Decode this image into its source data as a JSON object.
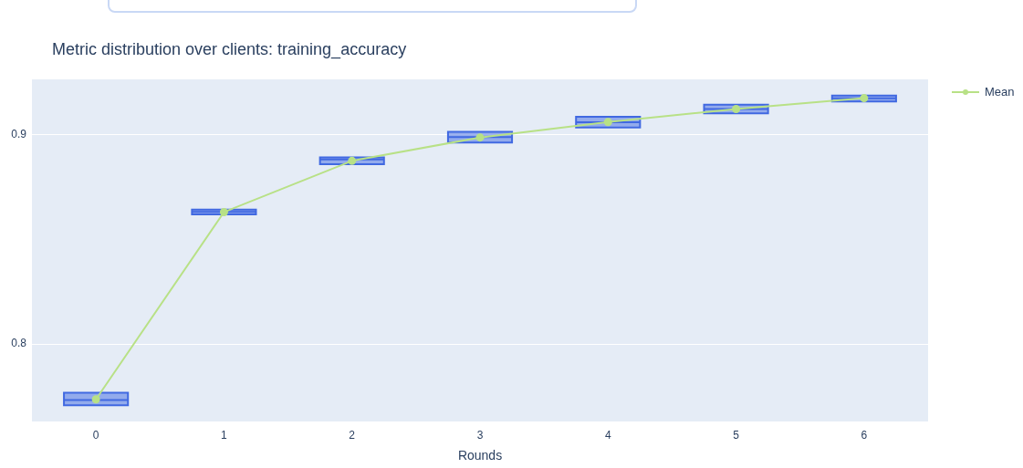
{
  "chart_data": {
    "type": "box",
    "title": "Metric distribution over clients: training_accuracy",
    "xlabel": "Rounds",
    "categories": [
      "0",
      "1",
      "2",
      "3",
      "4",
      "5",
      "6"
    ],
    "series": [
      {
        "type": "box",
        "color": "#4169e1",
        "boxes": [
          {
            "low": 0.7707,
            "q1": 0.7707,
            "median": 0.7732,
            "q3": 0.7767,
            "high": 0.7767
          },
          {
            "low": 0.862,
            "q1": 0.862,
            "median": 0.8632,
            "q3": 0.8643,
            "high": 0.8643
          },
          {
            "low": 0.886,
            "q1": 0.886,
            "median": 0.8883,
            "q3": 0.8893,
            "high": 0.8893
          },
          {
            "low": 0.8964,
            "q1": 0.8964,
            "median": 0.899,
            "q3": 0.9015,
            "high": 0.9015
          },
          {
            "low": 0.9036,
            "q1": 0.9036,
            "median": 0.9061,
            "q3": 0.9087,
            "high": 0.9087
          },
          {
            "low": 0.9103,
            "q1": 0.9103,
            "median": 0.9124,
            "q3": 0.9145,
            "high": 0.9145
          },
          {
            "low": 0.916,
            "q1": 0.916,
            "median": 0.9175,
            "q3": 0.9189,
            "high": 0.9189
          }
        ]
      },
      {
        "type": "line",
        "name": "Mean",
        "color": "#b8e186",
        "values": [
          0.7735,
          0.8631,
          0.8876,
          0.8988,
          0.9062,
          0.9124,
          0.9176
        ]
      }
    ],
    "ylim": [
      0.7629,
      0.9266
    ],
    "yticks": [
      0.8,
      0.9
    ],
    "grid": "y",
    "legend": "top right",
    "marker": "circle",
    "line_style": "solid"
  }
}
